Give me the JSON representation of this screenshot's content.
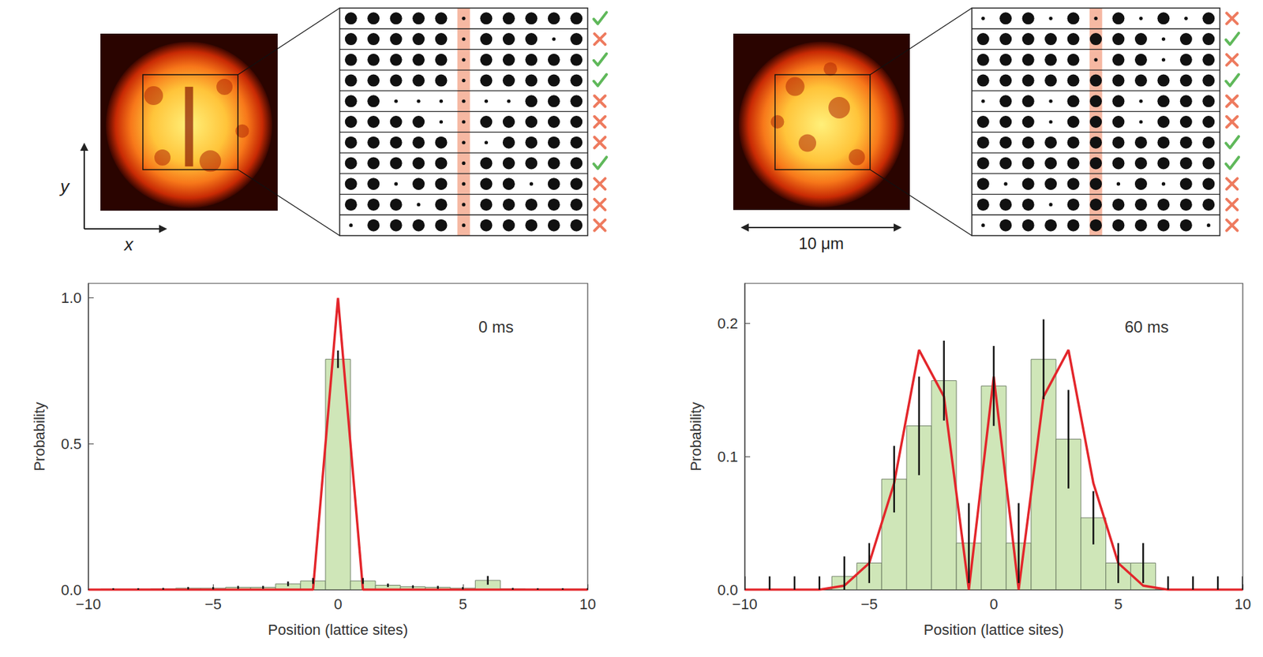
{
  "chart_data": [
    {
      "type": "bar",
      "annotation": "0 ms",
      "x_label": "Position (lattice sites)",
      "y_label": "Probability",
      "x": [
        -10,
        -9,
        -8,
        -7,
        -6,
        -5,
        -4,
        -3,
        -2,
        -1,
        0,
        1,
        2,
        3,
        4,
        5,
        6,
        7,
        8,
        9,
        10
      ],
      "series": [
        {
          "type": "bar",
          "color": "#cfe6b8",
          "values": [
            0,
            0.002,
            0.002,
            0.003,
            0.005,
            0.005,
            0.008,
            0.008,
            0.02,
            0.03,
            0.79,
            0.03,
            0.015,
            0.01,
            0.008,
            0.005,
            0.032,
            0.003,
            0.002,
            0.002,
            0.002
          ],
          "errors": [
            0.003,
            0.003,
            0.003,
            0.003,
            0.004,
            0.004,
            0.005,
            0.005,
            0.008,
            0.01,
            0.03,
            0.01,
            0.006,
            0.005,
            0.005,
            0.004,
            0.015,
            0.003,
            0.003,
            0.003,
            0.003
          ]
        },
        {
          "type": "line",
          "color": "#e3262b",
          "values": [
            0,
            0,
            0,
            0,
            0,
            0,
            0,
            0,
            0,
            0,
            1,
            0,
            0,
            0,
            0,
            0,
            0,
            0,
            0,
            0,
            0
          ]
        }
      ],
      "xlim": [
        -10,
        10
      ],
      "xticks": [
        {
          "value": -10,
          "label": "−10"
        },
        {
          "value": -5,
          "label": "−5"
        },
        0,
        5,
        10
      ],
      "ylim": [
        0,
        1.05
      ],
      "yticks": [
        {
          "value": 0,
          "label": "0.0"
        },
        {
          "value": 0.5,
          "label": "0.5"
        },
        {
          "value": 1,
          "label": "1.0"
        }
      ],
      "grid": false
    },
    {
      "type": "bar",
      "annotation": "60 ms",
      "x_label": "Position (lattice sites)",
      "y_label": "Probability",
      "x": [
        -10,
        -9,
        -8,
        -7,
        -6,
        -5,
        -4,
        -3,
        -2,
        -1,
        0,
        1,
        2,
        3,
        4,
        5,
        6,
        7,
        8,
        9,
        10
      ],
      "series": [
        {
          "type": "bar",
          "color": "#cfe6b8",
          "values": [
            0,
            0,
            0,
            0,
            0.01,
            0.02,
            0.083,
            0.123,
            0.157,
            0.035,
            0.153,
            0.035,
            0.173,
            0.113,
            0.054,
            0.02,
            0.02,
            0,
            0,
            0,
            0
          ],
          "errors": [
            0.01,
            0.01,
            0.01,
            0.01,
            0.015,
            0.015,
            0.025,
            0.037,
            0.03,
            0.03,
            0.03,
            0.03,
            0.03,
            0.037,
            0.02,
            0.015,
            0.015,
            0.01,
            0.01,
            0.01,
            0.01
          ]
        },
        {
          "type": "line",
          "color": "#e3262b",
          "values": [
            0,
            0,
            0,
            0,
            0.003,
            0.02,
            0.08,
            0.18,
            0.145,
            0,
            0.16,
            0,
            0.145,
            0.18,
            0.08,
            0.02,
            0.003,
            0,
            0,
            0,
            0
          ]
        }
      ],
      "xlim": [
        -10,
        10
      ],
      "xticks": [
        {
          "value": -10,
          "label": "−10"
        },
        {
          "value": -5,
          "label": "−5"
        },
        0,
        5,
        10
      ],
      "ylim": [
        0,
        0.23
      ],
      "yticks": [
        {
          "value": 0,
          "label": "0.0"
        },
        {
          "value": 0.1,
          "label": "0.1"
        },
        {
          "value": 0.2,
          "label": "0.2"
        }
      ],
      "grid": false
    }
  ],
  "figure": {
    "axis_labels": {
      "x": "x",
      "y": "y"
    },
    "scale_bar": "10 μm",
    "snapshots": [
      {
        "highlight_column": 5,
        "rows": [
          [
            1,
            1,
            1,
            1,
            1,
            0,
            1,
            1,
            1,
            1,
            1
          ],
          [
            1,
            1,
            1,
            1,
            1,
            0,
            1,
            1,
            1,
            0,
            1
          ],
          [
            1,
            1,
            1,
            1,
            1,
            0,
            1,
            1,
            1,
            1,
            1
          ],
          [
            1,
            1,
            1,
            1,
            1,
            0,
            1,
            1,
            1,
            1,
            1
          ],
          [
            1,
            1,
            0,
            0,
            0,
            0,
            0,
            0,
            1,
            1,
            1
          ],
          [
            1,
            1,
            1,
            1,
            0,
            0,
            1,
            1,
            1,
            1,
            1
          ],
          [
            1,
            1,
            1,
            1,
            1,
            0,
            0,
            1,
            1,
            1,
            1
          ],
          [
            1,
            1,
            1,
            1,
            1,
            0,
            1,
            1,
            1,
            1,
            1
          ],
          [
            1,
            1,
            0,
            1,
            1,
            0,
            1,
            1,
            0,
            1,
            1
          ],
          [
            1,
            1,
            1,
            0,
            1,
            0,
            1,
            1,
            1,
            1,
            1
          ],
          [
            0,
            1,
            1,
            1,
            1,
            0,
            1,
            1,
            1,
            1,
            1
          ]
        ],
        "accepted": [
          true,
          false,
          true,
          true,
          false,
          false,
          false,
          true,
          false,
          false,
          false
        ]
      },
      {
        "highlight_column": 5,
        "rows": [
          [
            0,
            1,
            1,
            0,
            1,
            0,
            1,
            0,
            1,
            0,
            1
          ],
          [
            1,
            1,
            1,
            1,
            1,
            1,
            1,
            1,
            0,
            1,
            1
          ],
          [
            1,
            1,
            1,
            1,
            1,
            0,
            1,
            1,
            0,
            1,
            1
          ],
          [
            1,
            1,
            1,
            1,
            1,
            1,
            1,
            1,
            1,
            1,
            1
          ],
          [
            0,
            1,
            1,
            0,
            1,
            1,
            1,
            0,
            1,
            1,
            1
          ],
          [
            1,
            1,
            1,
            0,
            1,
            1,
            1,
            0,
            1,
            1,
            1
          ],
          [
            1,
            1,
            1,
            1,
            1,
            1,
            1,
            1,
            1,
            1,
            1
          ],
          [
            1,
            1,
            1,
            1,
            1,
            1,
            1,
            1,
            1,
            1,
            1
          ],
          [
            1,
            0,
            1,
            1,
            1,
            1,
            0,
            1,
            0,
            1,
            1
          ],
          [
            1,
            1,
            1,
            0,
            1,
            1,
            1,
            1,
            1,
            1,
            1
          ],
          [
            0,
            1,
            1,
            1,
            1,
            1,
            1,
            1,
            1,
            1,
            0
          ]
        ],
        "accepted": [
          false,
          true,
          false,
          true,
          false,
          false,
          true,
          true,
          false,
          false,
          false
        ]
      }
    ]
  }
}
